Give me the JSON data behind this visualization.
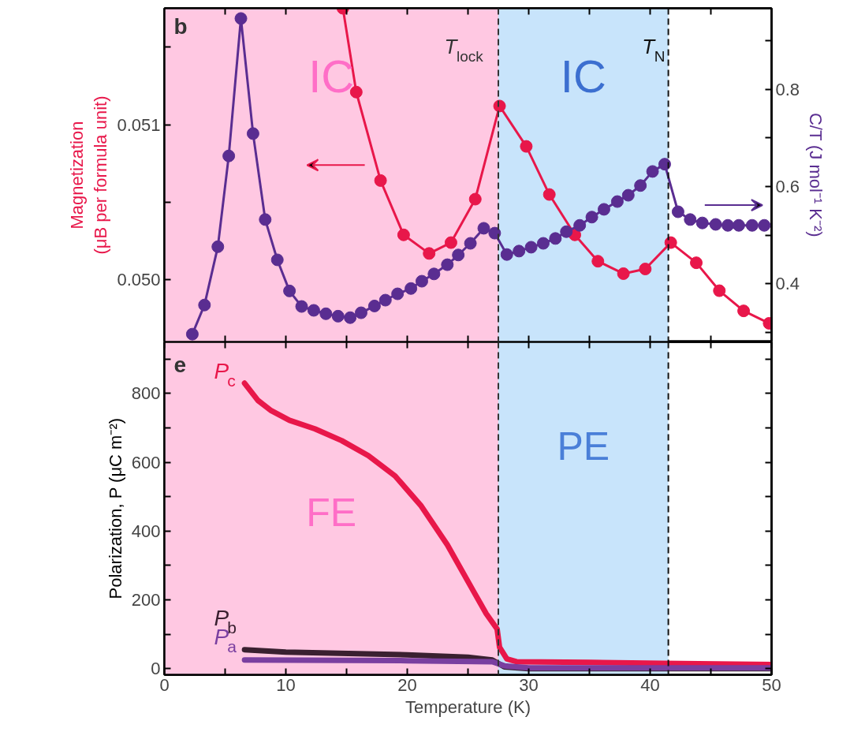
{
  "chart_data": [
    {
      "type": "line",
      "annotations": [
        "b"
      ],
      "xlim": [
        0,
        50
      ],
      "xticks": [
        {
          "value": 5,
          "label": null
        },
        {
          "value": 10,
          "label": null
        },
        {
          "value": 15,
          "label": null
        },
        {
          "value": 20,
          "label": null
        },
        {
          "value": 25,
          "label": null
        },
        {
          "value": 30,
          "label": null
        },
        {
          "value": 35,
          "label": null
        },
        {
          "value": 40,
          "label": null
        },
        {
          "value": 45,
          "label": null
        }
      ],
      "tick_labels": "y",
      "ylabel": "Magnetization\n(μB per formula unit)",
      "y2label": "C/T (J mol⁻¹ K⁻²)",
      "ylim": [
        0.0496,
        0.05175
      ],
      "yticks": [
        {
          "value": 0.05,
          "label": "0.050"
        },
        {
          "value": 0.0505,
          "label": null
        },
        {
          "value": 0.051,
          "label": "0.051"
        },
        {
          "value": 0.0515,
          "label": null
        }
      ],
      "y2lim": [
        0.28,
        0.967
      ],
      "y2ticks": [
        {
          "value": 0.3,
          "label": null
        },
        0.4,
        {
          "value": 0.5,
          "label": null
        },
        0.6,
        {
          "value": 0.7,
          "label": null
        },
        0.8,
        {
          "value": 0.9,
          "label": null
        }
      ],
      "marker": "circle",
      "grid": false,
      "bands": [
        {
          "axis": "x",
          "from": 0,
          "to": 27.5,
          "label": "IC",
          "color": "#ffc8e2"
        },
        {
          "axis": "x",
          "from": 27.5,
          "to": 41.5,
          "label": "IC",
          "color": "#c8e4fb"
        }
      ],
      "ref_lines": [
        {
          "axis": "x",
          "value": 27.5,
          "label": "T$_{lock}$",
          "line_style": "dashed",
          "color": "#333333"
        },
        {
          "axis": "x",
          "value": 41.5,
          "label": "T$_{N}$",
          "line_style": "dashed",
          "color": "#111111"
        }
      ],
      "series": [
        {
          "color": "#e8174a",
          "x": [
            14.7,
            15.8,
            17.8,
            19.7,
            21.8,
            23.6,
            25.6,
            27.6,
            29.8,
            31.7,
            33.8,
            35.7,
            37.8,
            39.6,
            41.7,
            43.8,
            45.7,
            47.7,
            49.8
          ],
          "values": [
            0.05175,
            0.05121,
            0.05064,
            0.05029,
            0.05017,
            0.05024,
            0.05052,
            0.05112,
            0.05086,
            0.05055,
            0.05029,
            0.05012,
            0.05004,
            0.05007,
            0.05024,
            0.05011,
            0.04993,
            0.0498,
            0.04972
          ]
        },
        {
          "color": "#5a2d91",
          "axis": "y2",
          "x": [
            2.3,
            3.3,
            4.4,
            5.3,
            6.3,
            7.3,
            8.3,
            9.3,
            10.3,
            11.3,
            12.3,
            13.3,
            14.3,
            15.3,
            16.2,
            17.3,
            18.2,
            19.2,
            20.3,
            21.2,
            22.2,
            23.3,
            24.2,
            25.2,
            26.3,
            27.2,
            28.2,
            29.2,
            30.2,
            31.2,
            32.2,
            33.1,
            34.2,
            35.2,
            36.2,
            37.3,
            38.2,
            39.2,
            40.2,
            41.2,
            42.3,
            43.3,
            44.3,
            45.4,
            46.4,
            47.3,
            48.4,
            49.4
          ],
          "values": [
            0.296,
            0.356,
            0.476,
            0.663,
            0.946,
            0.709,
            0.532,
            0.449,
            0.385,
            0.353,
            0.345,
            0.338,
            0.333,
            0.33,
            0.34,
            0.354,
            0.366,
            0.379,
            0.39,
            0.405,
            0.42,
            0.439,
            0.459,
            0.483,
            0.514,
            0.504,
            0.46,
            0.467,
            0.475,
            0.483,
            0.493,
            0.507,
            0.52,
            0.537,
            0.553,
            0.569,
            0.582,
            0.602,
            0.631,
            0.646,
            0.548,
            0.532,
            0.525,
            0.522,
            0.52,
            0.52,
            0.52,
            0.52
          ]
        }
      ]
    },
    {
      "type": "line",
      "annotations": [
        "e"
      ],
      "xlabel": "Temperature (K)",
      "ylabel": "Polarization, P (μC m⁻²)",
      "xlim": [
        0,
        50
      ],
      "xticks": [
        0,
        {
          "value": 5,
          "label": null
        },
        10,
        {
          "value": 15,
          "label": null
        },
        20,
        {
          "value": 25,
          "label": null
        },
        30,
        {
          "value": 35,
          "label": null
        },
        40,
        {
          "value": 45,
          "label": null
        },
        50
      ],
      "ylim": [
        -18,
        950
      ],
      "yticks": [
        0,
        {
          "value": 100,
          "label": null
        },
        200,
        {
          "value": 300,
          "label": null
        },
        400,
        {
          "value": 500,
          "label": null
        },
        600,
        {
          "value": 700,
          "label": null
        },
        800,
        {
          "value": 900,
          "label": null
        }
      ],
      "marker": "none",
      "grid": false,
      "bands": [
        {
          "axis": "x",
          "from": 0,
          "to": 27.5,
          "label": "FE",
          "color": "#ffc8e2"
        },
        {
          "axis": "x",
          "from": 27.5,
          "to": 41.5,
          "label": "PE",
          "color": "#c8e4fb"
        }
      ],
      "ref_lines": [
        {
          "axis": "x",
          "value": 27.5,
          "line_style": "dashed",
          "color": "#333333"
        },
        {
          "axis": "x",
          "value": 41.5,
          "line_style": "dashed",
          "color": "#111111"
        }
      ],
      "series": [
        {
          "name": "P$_{c}$",
          "color": "#e8174a",
          "x": [
            6.6,
            7.7,
            8.8,
            10.3,
            12.4,
            14.6,
            16.8,
            19.0,
            21.1,
            23.3,
            25.5,
            26.5,
            27.4,
            27.6,
            28.2,
            29,
            35,
            41,
            50
          ],
          "values": [
            830,
            780,
            750,
            722,
            697,
            663,
            619,
            560,
            475,
            360,
            222,
            160,
            115,
            62,
            28,
            20,
            18,
            15,
            12
          ]
        },
        {
          "name": "P$_{b}$",
          "color": "#3a2030",
          "x": [
            6.6,
            10,
            20,
            25,
            27,
            28,
            30,
            50
          ],
          "values": [
            55,
            48,
            40,
            33,
            25,
            5,
            0,
            0
          ]
        },
        {
          "name": "P$_{a}$",
          "color": "#7a3fa0",
          "x": [
            6.6,
            20,
            27,
            28,
            30,
            50
          ],
          "values": [
            25,
            23,
            20,
            8,
            2,
            2
          ]
        }
      ]
    }
  ]
}
